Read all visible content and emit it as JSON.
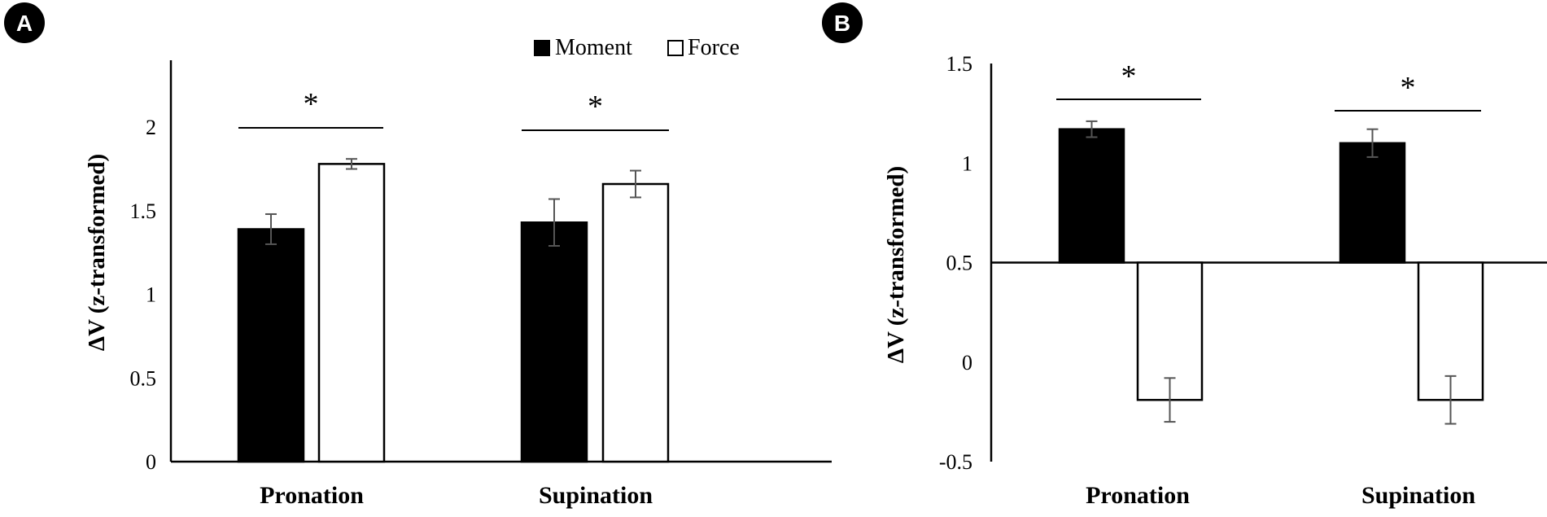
{
  "chart_data": [
    {
      "panel": "A",
      "type": "bar",
      "ylabel": "ΔV (z-transformed)",
      "ylim": [
        0,
        2.4
      ],
      "yticks": [
        "0",
        "0.5",
        "1",
        "1.5",
        "2"
      ],
      "categories": [
        "Pronation",
        "Supination"
      ],
      "legend": {
        "position": "top-right"
      },
      "series": [
        {
          "name": "Moment",
          "color": "#000000",
          "values": [
            1.39,
            1.43
          ],
          "errors": [
            0.09,
            0.14
          ]
        },
        {
          "name": "Force",
          "color": "#ffffff",
          "values": [
            1.78,
            1.66
          ],
          "errors": [
            0.03,
            0.08
          ]
        }
      ],
      "significance": [
        {
          "category": "Pronation",
          "label": "*"
        },
        {
          "category": "Supination",
          "label": "*"
        }
      ]
    },
    {
      "panel": "B",
      "type": "bar",
      "ylabel": "ΔV (z-transformed)",
      "ylim": [
        -0.5,
        1.5
      ],
      "baseline": 0.5,
      "yticks": [
        "-0.5",
        "0",
        "0.5",
        "1",
        "1.5"
      ],
      "categories": [
        "Pronation",
        "Supination"
      ],
      "series": [
        {
          "name": "Moment",
          "color": "#000000",
          "values": [
            1.17,
            1.1
          ],
          "errors": [
            0.04,
            0.07
          ]
        },
        {
          "name": "Force",
          "color": "#ffffff",
          "values": [
            -0.19,
            -0.19
          ],
          "errors": [
            0.11,
            0.12
          ]
        }
      ],
      "significance": [
        {
          "category": "Pronation",
          "label": "*"
        },
        {
          "category": "Supination",
          "label": "*"
        }
      ]
    }
  ]
}
